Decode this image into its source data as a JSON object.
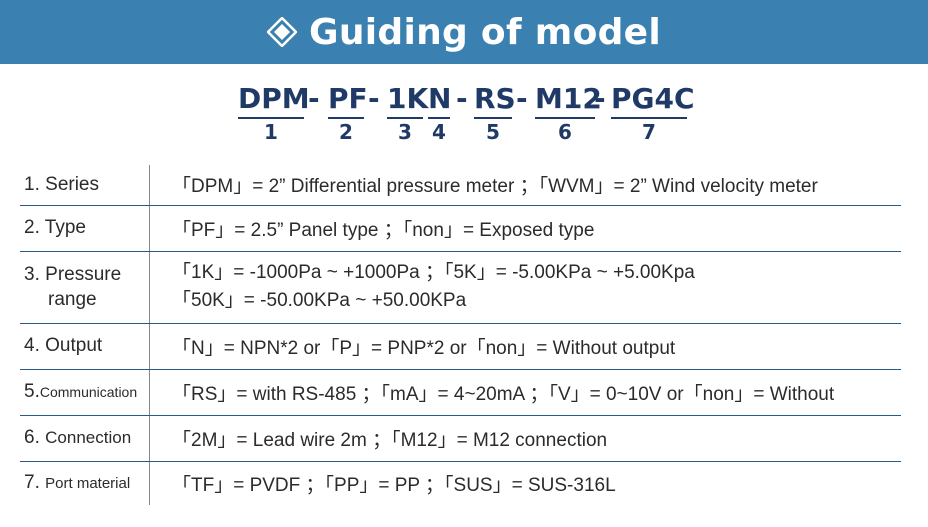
{
  "header": {
    "title": "Guiding of model",
    "icon": "diamond-icon"
  },
  "model_code": {
    "segments": [
      {
        "code": "DPM",
        "num": "1"
      },
      {
        "code": "PF",
        "num": "2"
      },
      {
        "code": "1K",
        "num": "3"
      },
      {
        "code": "N",
        "num": "4"
      },
      {
        "code": "RS",
        "num": "5"
      },
      {
        "code": "M12",
        "num": "6"
      },
      {
        "code": "PG4C",
        "num": "7"
      }
    ],
    "separator": "-"
  },
  "rows": [
    {
      "num": "1.",
      "label": "Series",
      "line1": "「DPM」= 2” Differential pressure meter ；「WVM」= 2” Wind velocity meter",
      "line2": ""
    },
    {
      "num": "2.",
      "label": "Type",
      "line1": "「PF」= 2.5” Panel type ；「non」= Exposed type",
      "line2": ""
    },
    {
      "num": "3.",
      "label": "Pressure",
      "label2": "range",
      "line1": "「1K」= -1000Pa ~ +1000Pa ；「5K」= -5.00KPa ~ +5.00Kpa",
      "line2": "「50K」= -50.00KPa ~ +50.00KPa"
    },
    {
      "num": "4.",
      "label": "Output",
      "line1": "「N」= NPN*2 or「P」= PNP*2 or「non」= Without output",
      "line2": ""
    },
    {
      "num": "5.",
      "label": "Communication",
      "line1": "「RS」= with RS-485 ；「mA」= 4~20mA ；「V」= 0~10V or「non」= Without",
      "line2": ""
    },
    {
      "num": "6.",
      "label": "Connection",
      "line1": "「2M」= Lead wire 2m ；「M12」= M12 connection",
      "line2": ""
    },
    {
      "num": "7.",
      "label": "Port material",
      "line1": "「TF」= PVDF ；「PP」= PP ；「SUS」= SUS-316L",
      "line2": ""
    }
  ]
}
